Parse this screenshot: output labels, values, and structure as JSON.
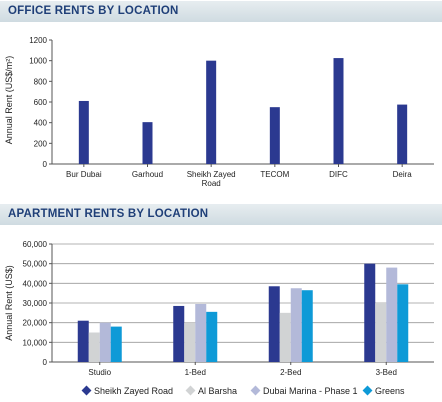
{
  "chart_data": [
    {
      "type": "bar",
      "title": "OFFICE RENTS BY LOCATION",
      "ylabel": "Annual Rent (US$/m²)",
      "xlabel": "",
      "categories": [
        "Bur Dubai",
        "Garhoud",
        "Sheikh Zayed Road",
        "TECOM",
        "DIFC",
        "Deira"
      ],
      "category_lines": [
        [
          "Bur Dubai"
        ],
        [
          "Garhoud"
        ],
        [
          "Sheikh Zayed",
          "Road"
        ],
        [
          "TECOM"
        ],
        [
          "DIFC"
        ],
        [
          "Deira"
        ]
      ],
      "values": [
        610,
        405,
        1000,
        550,
        1025,
        575
      ],
      "ylim": [
        0,
        1200
      ],
      "yticks": [
        "0",
        "200",
        "400",
        "600",
        "800",
        "1000",
        "1200"
      ],
      "grid": false,
      "colors": [
        "#2b3990"
      ]
    },
    {
      "type": "bar",
      "title": "APARTMENT RENTS BY LOCATION",
      "ylabel": "Annual Rent (US$)",
      "xlabel": "",
      "categories": [
        "Studio",
        "1-Bed",
        "2-Bed",
        "3-Bed"
      ],
      "series": [
        {
          "name": "Sheikh Zayed Road",
          "values": [
            21000,
            28500,
            38500,
            50000
          ],
          "color": "#2b3990"
        },
        {
          "name": "Al Barsha",
          "values": [
            15000,
            20000,
            25000,
            30000
          ],
          "color": "#d1d3d4"
        },
        {
          "name": "Dubai Marina - Phase 1",
          "values": [
            20000,
            29500,
            37500,
            48000
          ],
          "color": "#b3b9d9"
        },
        {
          "name": "Greens",
          "values": [
            18000,
            25500,
            36500,
            39500
          ],
          "color": "#0e9ad7"
        }
      ],
      "ylim": [
        0,
        60000
      ],
      "yticks": [
        "0",
        "10,000",
        "20,000",
        "30,000",
        "40,000",
        "50,000",
        "60,000"
      ],
      "grid": true,
      "legend": "bottom"
    }
  ]
}
